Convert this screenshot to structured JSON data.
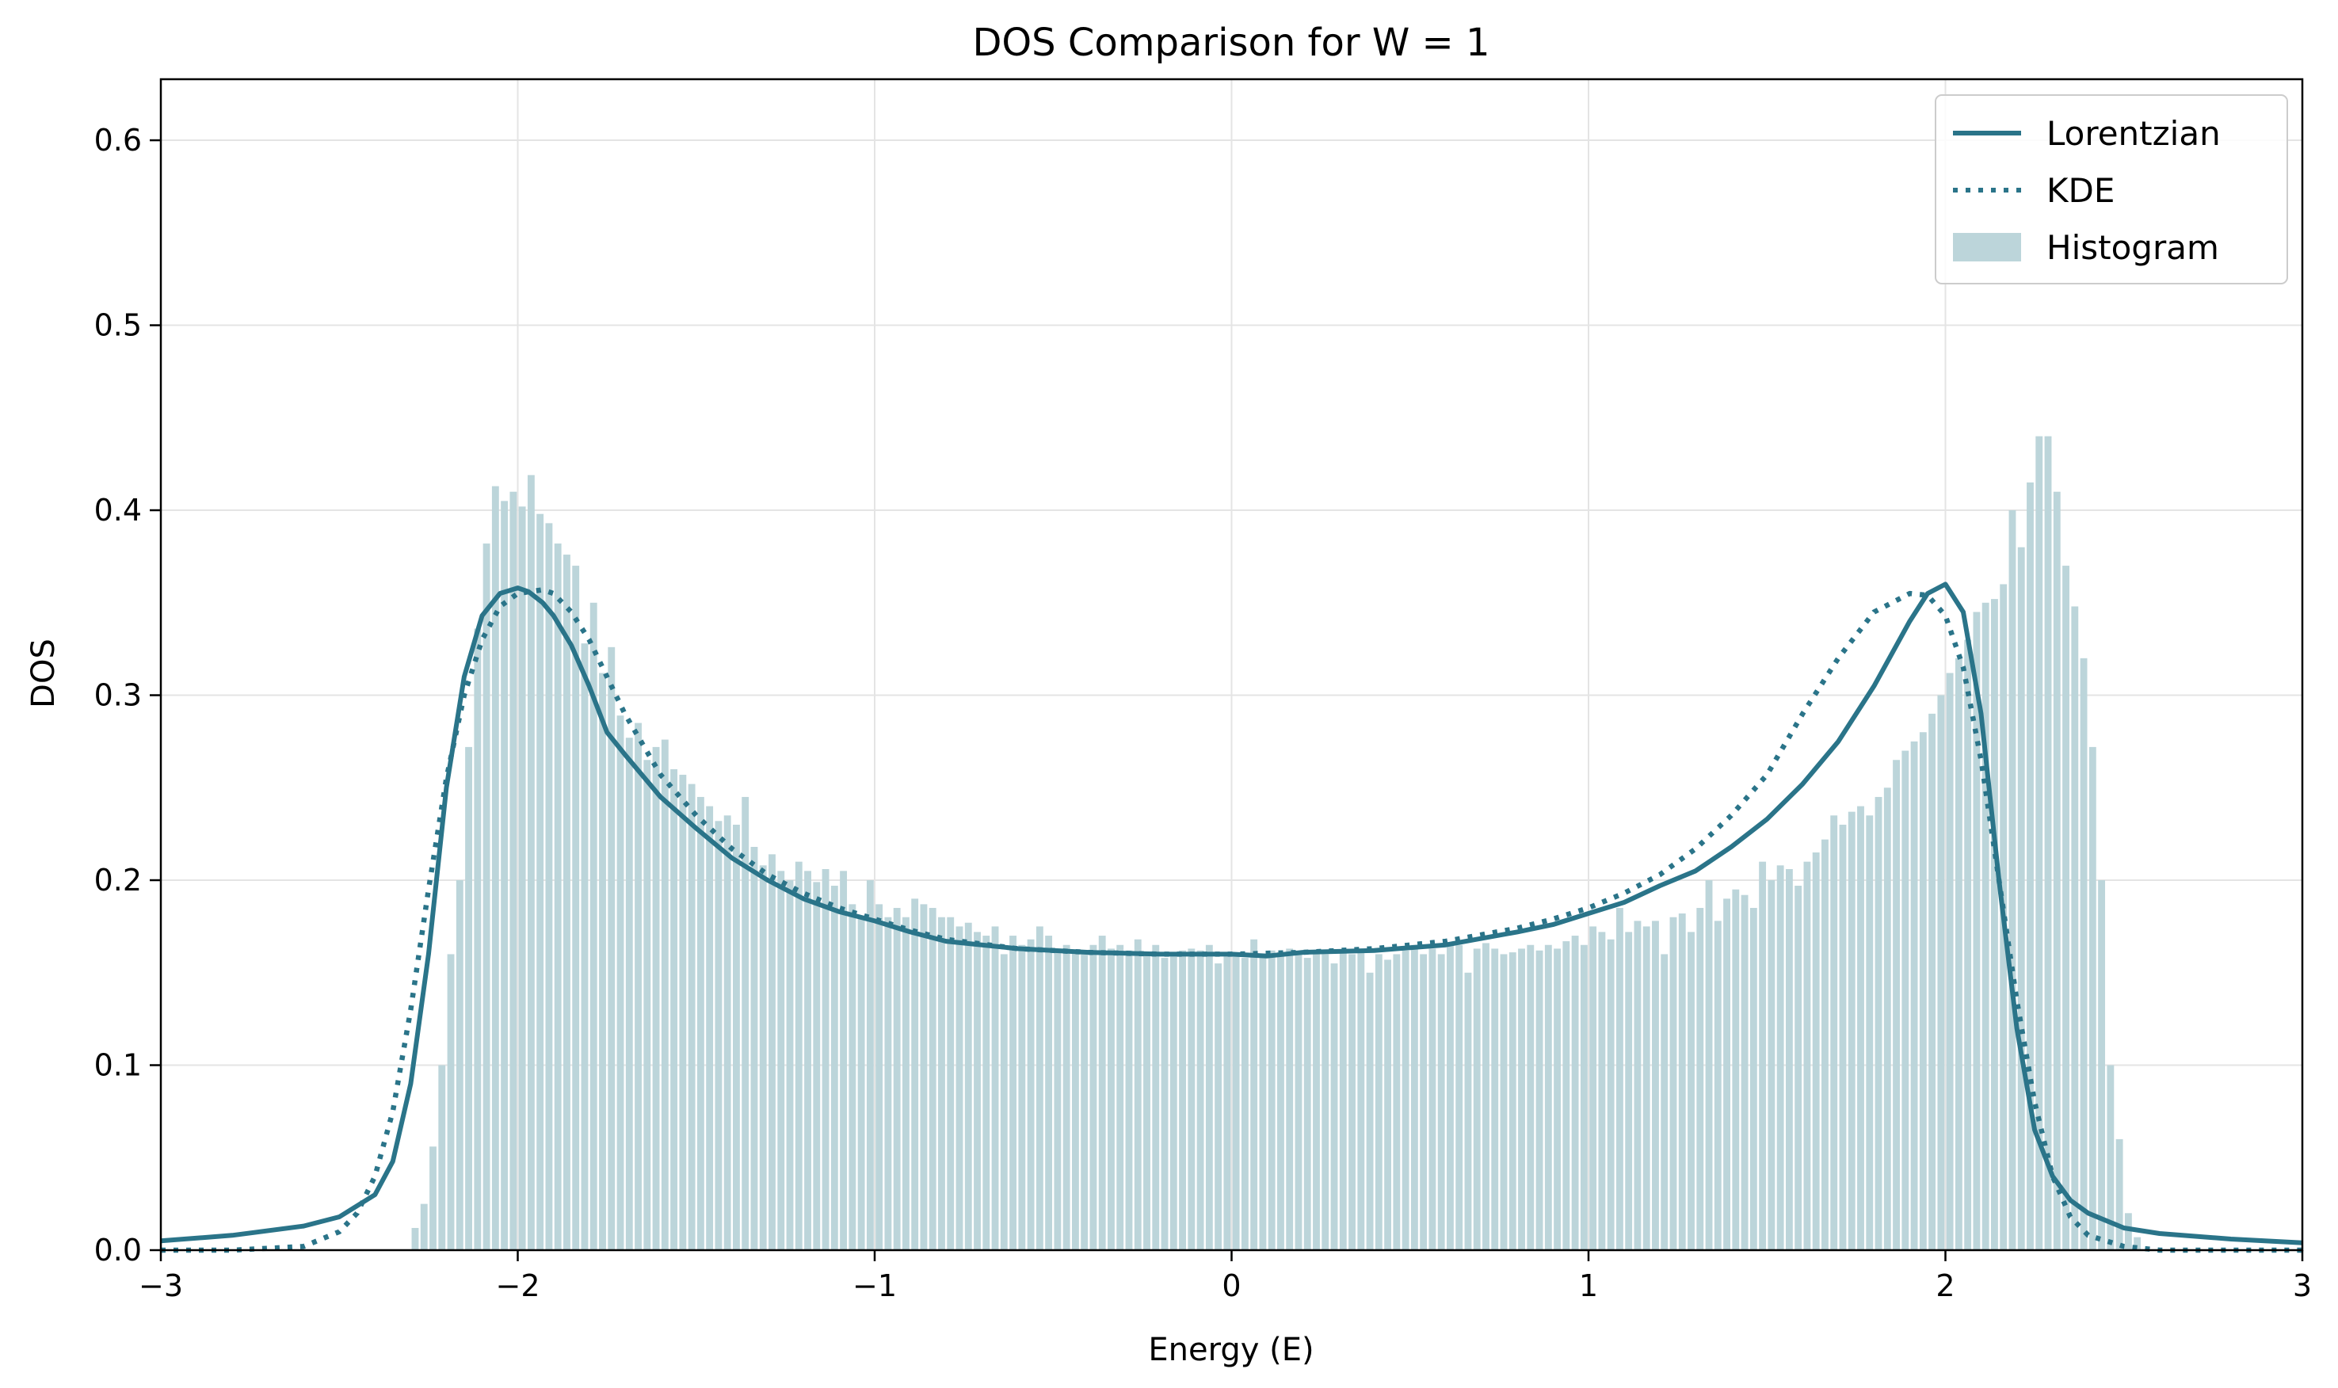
{
  "chart_data": {
    "type": "line",
    "title": "DOS Comparison for W = 1",
    "xlabel": "Energy (E)",
    "ylabel": "DOS",
    "xlim": [
      -3,
      3
    ],
    "ylim": [
      0,
      0.633
    ],
    "grid": true,
    "legend_placement": "top-right",
    "x_ticks": [
      -3,
      -2,
      -1,
      0,
      1,
      2,
      3
    ],
    "x_tick_labels": [
      "−3",
      "−2",
      "−1",
      "0",
      "1",
      "2",
      "3"
    ],
    "y_ticks": [
      0.0,
      0.1,
      0.2,
      0.3,
      0.4,
      0.5,
      0.6
    ],
    "y_tick_labels": [
      "0.0",
      "0.1",
      "0.2",
      "0.3",
      "0.4",
      "0.5",
      "0.6"
    ],
    "colors": {
      "line": "#2a7489",
      "histogram": "#bcd5da",
      "grid": "#e4e4e4"
    },
    "series": [
      {
        "name": "Lorentzian",
        "style": "solid",
        "x": [
          -3.0,
          -2.8,
          -2.6,
          -2.5,
          -2.4,
          -2.35,
          -2.3,
          -2.25,
          -2.2,
          -2.15,
          -2.1,
          -2.05,
          -2.0,
          -1.97,
          -1.93,
          -1.9,
          -1.85,
          -1.8,
          -1.75,
          -1.7,
          -1.6,
          -1.5,
          -1.4,
          -1.3,
          -1.2,
          -1.1,
          -1.0,
          -0.9,
          -0.8,
          -0.6,
          -0.4,
          -0.2,
          0.0,
          0.1,
          0.2,
          0.4,
          0.6,
          0.8,
          0.9,
          1.0,
          1.1,
          1.2,
          1.3,
          1.4,
          1.5,
          1.6,
          1.7,
          1.8,
          1.9,
          1.95,
          2.0,
          2.05,
          2.1,
          2.15,
          2.2,
          2.25,
          2.3,
          2.35,
          2.4,
          2.5,
          2.6,
          2.8,
          3.0
        ],
        "y": [
          0.005,
          0.008,
          0.013,
          0.018,
          0.03,
          0.048,
          0.09,
          0.16,
          0.25,
          0.31,
          0.343,
          0.355,
          0.358,
          0.356,
          0.35,
          0.343,
          0.327,
          0.305,
          0.28,
          0.268,
          0.245,
          0.228,
          0.212,
          0.2,
          0.19,
          0.183,
          0.178,
          0.172,
          0.167,
          0.163,
          0.161,
          0.16,
          0.16,
          0.159,
          0.161,
          0.162,
          0.165,
          0.172,
          0.176,
          0.182,
          0.188,
          0.197,
          0.205,
          0.218,
          0.233,
          0.252,
          0.275,
          0.305,
          0.34,
          0.355,
          0.36,
          0.345,
          0.29,
          0.2,
          0.12,
          0.065,
          0.04,
          0.027,
          0.02,
          0.012,
          0.009,
          0.006,
          0.004
        ]
      },
      {
        "name": "KDE",
        "style": "dotted",
        "x": [
          -3.0,
          -2.8,
          -2.6,
          -2.5,
          -2.45,
          -2.4,
          -2.35,
          -2.3,
          -2.25,
          -2.2,
          -2.15,
          -2.1,
          -2.05,
          -2.0,
          -1.93,
          -1.9,
          -1.85,
          -1.8,
          -1.7,
          -1.6,
          -1.5,
          -1.4,
          -1.3,
          -1.2,
          -1.1,
          -1.0,
          -0.9,
          -0.8,
          -0.6,
          -0.4,
          -0.2,
          0.0,
          0.2,
          0.4,
          0.6,
          0.8,
          0.9,
          1.0,
          1.1,
          1.2,
          1.3,
          1.4,
          1.5,
          1.6,
          1.7,
          1.8,
          1.9,
          1.95,
          2.0,
          2.05,
          2.1,
          2.15,
          2.2,
          2.25,
          2.3,
          2.35,
          2.4,
          2.5,
          2.6,
          2.8,
          3.0
        ],
        "y": [
          0.0,
          0.0,
          0.002,
          0.01,
          0.02,
          0.04,
          0.075,
          0.13,
          0.195,
          0.255,
          0.3,
          0.33,
          0.348,
          0.355,
          0.357,
          0.355,
          0.345,
          0.33,
          0.29,
          0.257,
          0.235,
          0.217,
          0.203,
          0.193,
          0.185,
          0.179,
          0.173,
          0.168,
          0.163,
          0.161,
          0.16,
          0.16,
          0.161,
          0.163,
          0.167,
          0.174,
          0.179,
          0.185,
          0.193,
          0.203,
          0.217,
          0.235,
          0.257,
          0.29,
          0.32,
          0.345,
          0.355,
          0.354,
          0.343,
          0.315,
          0.265,
          0.2,
          0.135,
          0.08,
          0.04,
          0.018,
          0.008,
          0.002,
          0.0,
          0.0,
          0.0
        ]
      },
      {
        "name": "Histogram",
        "style": "bars",
        "bin_start": -2.3,
        "bin_width": 0.025,
        "values": [
          0.012,
          0.025,
          0.056,
          0.1,
          0.16,
          0.2,
          0.272,
          0.336,
          0.382,
          0.413,
          0.405,
          0.41,
          0.402,
          0.419,
          0.398,
          0.393,
          0.382,
          0.376,
          0.37,
          0.328,
          0.35,
          0.312,
          0.326,
          0.289,
          0.277,
          0.285,
          0.265,
          0.272,
          0.276,
          0.26,
          0.257,
          0.252,
          0.245,
          0.24,
          0.232,
          0.235,
          0.23,
          0.245,
          0.218,
          0.208,
          0.214,
          0.205,
          0.2,
          0.21,
          0.205,
          0.199,
          0.206,
          0.197,
          0.205,
          0.187,
          0.18,
          0.2,
          0.187,
          0.18,
          0.185,
          0.18,
          0.19,
          0.187,
          0.185,
          0.18,
          0.18,
          0.175,
          0.177,
          0.172,
          0.17,
          0.175,
          0.16,
          0.17,
          0.165,
          0.168,
          0.175,
          0.17,
          0.163,
          0.165,
          0.161,
          0.16,
          0.165,
          0.17,
          0.163,
          0.165,
          0.162,
          0.168,
          0.16,
          0.165,
          0.158,
          0.16,
          0.162,
          0.163,
          0.162,
          0.165,
          0.155,
          0.159,
          0.16,
          0.158,
          0.168,
          0.16,
          0.162,
          0.161,
          0.163,
          0.16,
          0.158,
          0.161,
          0.16,
          0.155,
          0.162,
          0.16,
          0.163,
          0.15,
          0.16,
          0.157,
          0.16,
          0.162,
          0.165,
          0.16,
          0.163,
          0.16,
          0.165,
          0.165,
          0.15,
          0.163,
          0.166,
          0.163,
          0.16,
          0.161,
          0.163,
          0.165,
          0.162,
          0.165,
          0.163,
          0.167,
          0.17,
          0.165,
          0.175,
          0.172,
          0.168,
          0.185,
          0.172,
          0.178,
          0.175,
          0.178,
          0.16,
          0.18,
          0.182,
          0.172,
          0.185,
          0.2,
          0.178,
          0.19,
          0.195,
          0.192,
          0.185,
          0.21,
          0.2,
          0.208,
          0.206,
          0.197,
          0.21,
          0.215,
          0.222,
          0.235,
          0.23,
          0.237,
          0.24,
          0.235,
          0.245,
          0.25,
          0.265,
          0.27,
          0.275,
          0.28,
          0.29,
          0.3,
          0.312,
          0.32,
          0.33,
          0.345,
          0.35,
          0.352,
          0.36,
          0.4,
          0.38,
          0.415,
          0.44,
          0.44,
          0.41,
          0.37,
          0.348,
          0.32,
          0.272,
          0.2,
          0.1,
          0.06,
          0.02,
          0.007
        ]
      }
    ]
  }
}
